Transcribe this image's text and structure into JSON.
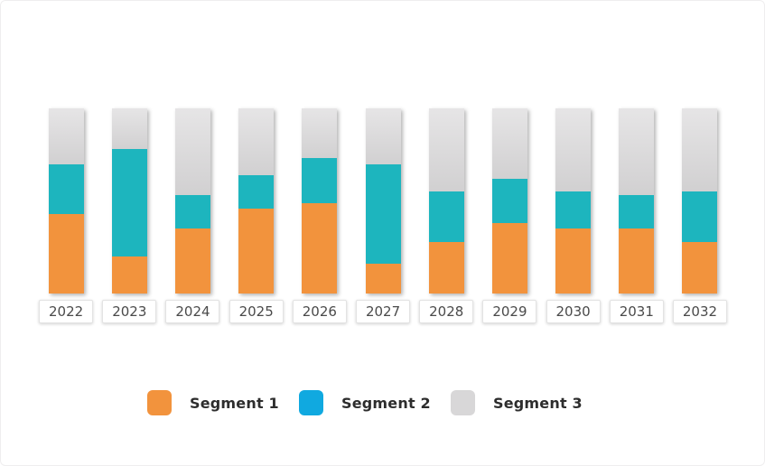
{
  "chart_data": {
    "type": "bar",
    "variant": "stacked-100-percent-column",
    "title": "",
    "categories": [
      "2022",
      "2023",
      "2024",
      "2025",
      "2026",
      "2027",
      "2028",
      "2029",
      "2030",
      "2031",
      "2032"
    ],
    "series": [
      {
        "name": "Segment 1",
        "color": "#F2933D",
        "values": [
          43,
          20,
          35,
          46,
          49,
          16,
          28,
          38,
          35,
          35,
          28
        ]
      },
      {
        "name": "Segment 2",
        "color": "#1DB5BE",
        "values": [
          27,
          58,
          18,
          18,
          24,
          54,
          27,
          24,
          20,
          18,
          27
        ]
      },
      {
        "name": "Segment 3",
        "color": "#DBDADB",
        "color_top": "#E6E5E6",
        "color_bottom": "#D1D0D1",
        "values": [
          30,
          22,
          47,
          36,
          27,
          30,
          45,
          38,
          45,
          47,
          45
        ]
      }
    ],
    "value_unit": "percent of total bar height",
    "ylim": [
      0,
      100
    ],
    "grid": false,
    "y_axis_visible": false,
    "x_label_style": "boxed",
    "legend_position": "bottom"
  },
  "legend": {
    "items": [
      {
        "label": "Segment 1",
        "swatch_color": "#F2933D"
      },
      {
        "label": "Segment 2",
        "swatch_color": "#10A9E0"
      },
      {
        "label": "Segment 3",
        "swatch_color": "#D8D7D8"
      }
    ]
  }
}
